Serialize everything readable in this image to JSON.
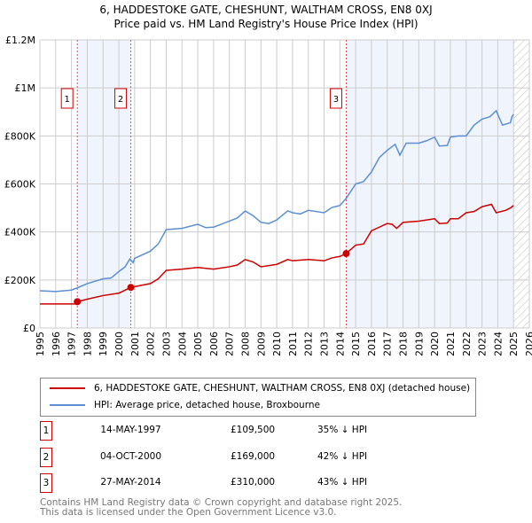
{
  "title": "6, HADDESTOKE GATE, CHESHUNT, WALTHAM CROSS, EN8 0XJ",
  "subtitle": "Price paid vs. HM Land Registry's House Price Index (HPI)",
  "colors": {
    "property": "#cc0000",
    "hpi": "#5b8fd1",
    "shade": "#f0f4fd",
    "grid": "#cccccc"
  },
  "chart_data": {
    "type": "line",
    "xlim": [
      1995,
      2026
    ],
    "ylim": [
      0,
      1200000
    ],
    "x_ticks": [
      "1995",
      "1996",
      "1997",
      "1998",
      "1999",
      "2000",
      "2001",
      "2002",
      "2003",
      "2004",
      "2005",
      "2006",
      "2007",
      "2008",
      "2009",
      "2010",
      "2011",
      "2012",
      "2013",
      "2014",
      "2015",
      "2016",
      "2017",
      "2018",
      "2019",
      "2020",
      "2021",
      "2022",
      "2023",
      "2024",
      "2025",
      "2026"
    ],
    "y_ticks": [
      {
        "v": 0,
        "label": "£0"
      },
      {
        "v": 200000,
        "label": "£200K"
      },
      {
        "v": 400000,
        "label": "£400K"
      },
      {
        "v": 600000,
        "label": "£600K"
      },
      {
        "v": 800000,
        "label": "£800K"
      },
      {
        "v": 1000000,
        "label": "£1M"
      },
      {
        "v": 1200000,
        "label": "£1.2M"
      }
    ],
    "series": [
      {
        "name": "6, HADDESTOKE GATE, CHESHUNT, WALTHAM CROSS, EN8 0XJ (detached house)",
        "color": "#cc0000",
        "points": [
          [
            1995,
            100000
          ],
          [
            1997.37,
            100000
          ],
          [
            1997.37,
            109500
          ],
          [
            1998,
            120000
          ],
          [
            1999,
            135000
          ],
          [
            2000,
            145000
          ],
          [
            2000.76,
            169000
          ],
          [
            2001,
            172000
          ],
          [
            2002,
            185000
          ],
          [
            2002.5,
            205000
          ],
          [
            2003,
            240000
          ],
          [
            2004,
            245000
          ],
          [
            2005,
            252000
          ],
          [
            2006,
            245000
          ],
          [
            2007,
            255000
          ],
          [
            2007.5,
            262000
          ],
          [
            2008,
            285000
          ],
          [
            2008.5,
            275000
          ],
          [
            2009,
            255000
          ],
          [
            2010,
            265000
          ],
          [
            2010.7,
            285000
          ],
          [
            2011,
            280000
          ],
          [
            2012,
            285000
          ],
          [
            2013,
            280000
          ],
          [
            2013.5,
            292000
          ],
          [
            2014,
            298000
          ],
          [
            2014.4,
            310000
          ],
          [
            2015,
            345000
          ],
          [
            2015.5,
            350000
          ],
          [
            2016,
            405000
          ],
          [
            2016.5,
            420000
          ],
          [
            2017,
            435000
          ],
          [
            2017.3,
            432000
          ],
          [
            2017.6,
            415000
          ],
          [
            2018,
            440000
          ],
          [
            2019,
            445000
          ],
          [
            2020,
            455000
          ],
          [
            2020.3,
            435000
          ],
          [
            2020.8,
            437000
          ],
          [
            2021,
            455000
          ],
          [
            2021.5,
            455000
          ],
          [
            2022,
            480000
          ],
          [
            2022.5,
            485000
          ],
          [
            2023,
            505000
          ],
          [
            2023.6,
            515000
          ],
          [
            2023.9,
            480000
          ],
          [
            2024.5,
            490000
          ],
          [
            2024.8,
            500000
          ],
          [
            2025,
            510000
          ]
        ]
      },
      {
        "name": "HPI: Average price, detached house, Broxbourne",
        "color": "#5b8fd1",
        "points": [
          [
            1995,
            155000
          ],
          [
            1996,
            152000
          ],
          [
            1997,
            158000
          ],
          [
            1997.4,
            168000
          ],
          [
            1998,
            185000
          ],
          [
            1999,
            205000
          ],
          [
            1999.5,
            208000
          ],
          [
            2000,
            235000
          ],
          [
            2000.4,
            255000
          ],
          [
            2000.7,
            288000
          ],
          [
            2000.9,
            272000
          ],
          [
            2001,
            290000
          ],
          [
            2002,
            320000
          ],
          [
            2002.5,
            350000
          ],
          [
            2003,
            410000
          ],
          [
            2004,
            415000
          ],
          [
            2005,
            432000
          ],
          [
            2005.5,
            418000
          ],
          [
            2006,
            420000
          ],
          [
            2007,
            445000
          ],
          [
            2007.5,
            458000
          ],
          [
            2008,
            487000
          ],
          [
            2008.5,
            468000
          ],
          [
            2009,
            440000
          ],
          [
            2009.5,
            435000
          ],
          [
            2010,
            450000
          ],
          [
            2010.7,
            488000
          ],
          [
            2011,
            480000
          ],
          [
            2011.5,
            475000
          ],
          [
            2012,
            490000
          ],
          [
            2013,
            480000
          ],
          [
            2013.5,
            502000
          ],
          [
            2014,
            510000
          ],
          [
            2014.4,
            540000
          ],
          [
            2015,
            600000
          ],
          [
            2015.5,
            610000
          ],
          [
            2016,
            650000
          ],
          [
            2016.5,
            710000
          ],
          [
            2017,
            740000
          ],
          [
            2017.5,
            765000
          ],
          [
            2017.8,
            720000
          ],
          [
            2018.2,
            770000
          ],
          [
            2019,
            770000
          ],
          [
            2019.5,
            780000
          ],
          [
            2020,
            795000
          ],
          [
            2020.3,
            758000
          ],
          [
            2020.8,
            760000
          ],
          [
            2021,
            795000
          ],
          [
            2021.5,
            800000
          ],
          [
            2022,
            800000
          ],
          [
            2022.5,
            845000
          ],
          [
            2023,
            870000
          ],
          [
            2023.5,
            880000
          ],
          [
            2023.9,
            905000
          ],
          [
            2024.3,
            845000
          ],
          [
            2024.8,
            855000
          ],
          [
            2024.9,
            880000
          ],
          [
            2025,
            890000
          ]
        ]
      }
    ],
    "sales": [
      {
        "n": "1",
        "x": 1997.37,
        "y": 109500
      },
      {
        "n": "2",
        "x": 2000.76,
        "y": 169000
      },
      {
        "n": "3",
        "x": 2014.4,
        "y": 310000
      }
    ],
    "shaded_ranges": [
      [
        1997.37,
        2000.76
      ],
      [
        2014.4,
        2025.0
      ]
    ],
    "hatched_range": [
      2025.0,
      2026
    ]
  },
  "legend": {
    "property": "6, HADDESTOKE GATE, CHESHUNT, WALTHAM CROSS, EN8 0XJ (detached house)",
    "hpi": "HPI: Average price, detached house, Broxbourne"
  },
  "transactions": [
    {
      "n": "1",
      "date": "14-MAY-1997",
      "price": "£109,500",
      "hpi": "35% ↓ HPI"
    },
    {
      "n": "2",
      "date": "04-OCT-2000",
      "price": "£169,000",
      "hpi": "42% ↓ HPI"
    },
    {
      "n": "3",
      "date": "27-MAY-2014",
      "price": "£310,000",
      "hpi": "43% ↓ HPI"
    }
  ],
  "footer": [
    "Contains HM Land Registry data © Crown copyright and database right 2025.",
    "This data is licensed under the Open Government Licence v3.0."
  ]
}
